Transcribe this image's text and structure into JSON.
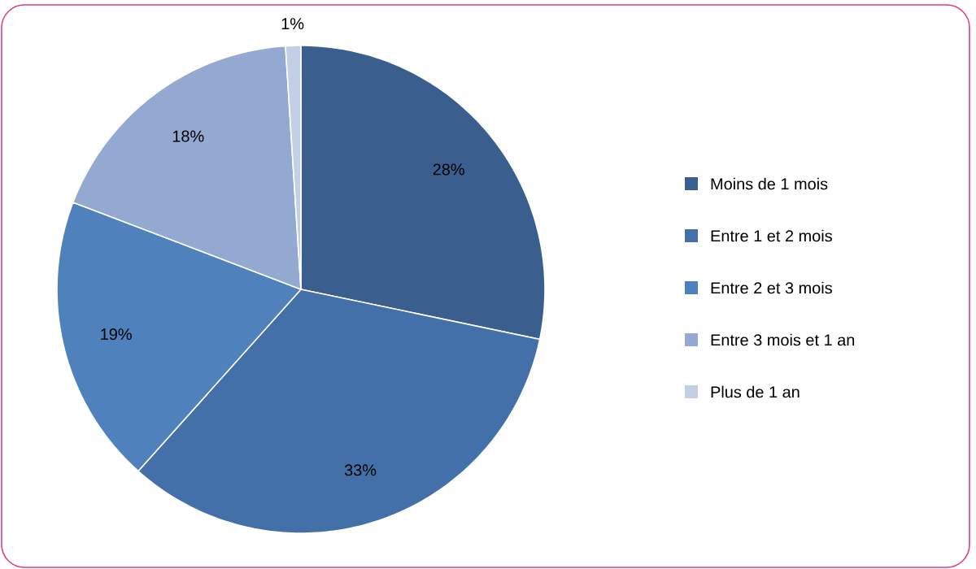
{
  "chart_data": {
    "type": "pie",
    "categories": [
      "Moins de 1 mois",
      "Entre 1 et 2 mois",
      "Entre 2 et 3 mois",
      "Entre 3 mois et 1 an",
      "Plus de 1 an"
    ],
    "values": [
      28,
      33,
      19,
      18,
      1
    ],
    "colors": [
      "#3a5f8e",
      "#4370a8",
      "#4f81bd",
      "#93a9d1",
      "#c3cfe6"
    ],
    "value_labels": [
      "28%",
      "33%",
      "19%",
      "18%",
      "1%"
    ],
    "legend": "right"
  }
}
